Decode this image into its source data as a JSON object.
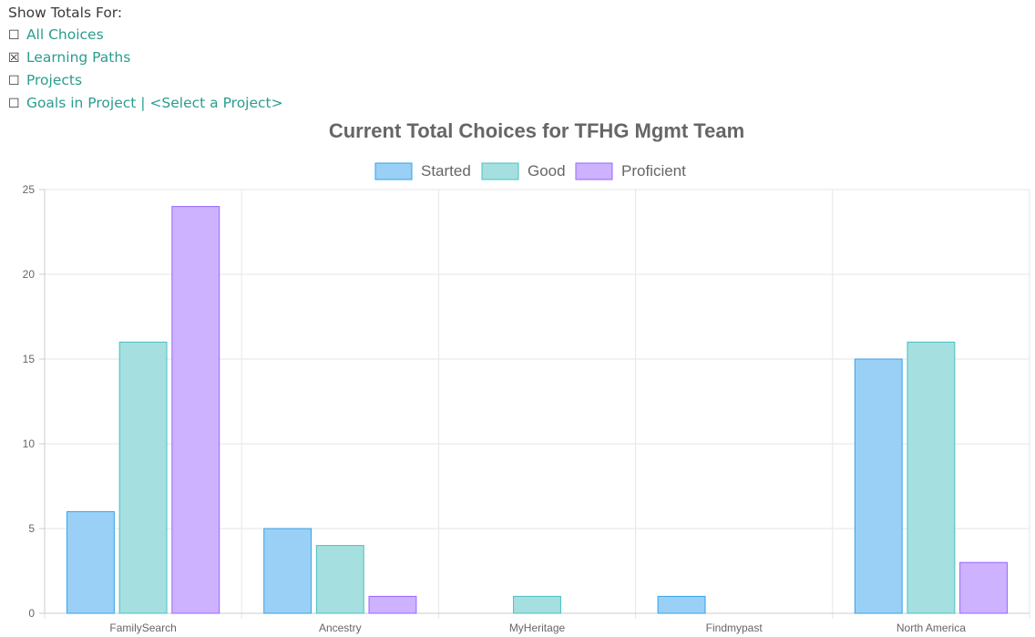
{
  "controls": {
    "heading": "Show Totals For:",
    "options": [
      {
        "label": "All Choices",
        "checked": false
      },
      {
        "label": "Learning Paths",
        "checked": true
      },
      {
        "label": "Projects",
        "checked": false
      },
      {
        "label": "Goals in Project",
        "checked": false,
        "separator": "|",
        "project_select": "<Select a Project>"
      }
    ],
    "checkbox_glyphs": {
      "checked": "☒",
      "unchecked": "☐"
    },
    "link_color": "#2a9d8f"
  },
  "chart_data": {
    "type": "bar",
    "title": "Current Total Choices for TFHG Mgmt Team",
    "categories": [
      "FamilySearch",
      "Ancestry",
      "MyHeritage",
      "Findmypast",
      "North America"
    ],
    "series": [
      {
        "name": "Started",
        "values": [
          6,
          5,
          0,
          1,
          15
        ],
        "fill": "#9ad0f5",
        "stroke": "#36a2eb"
      },
      {
        "name": "Good",
        "values": [
          16,
          4,
          1,
          0,
          16
        ],
        "fill": "#a5dfdf",
        "stroke": "#4bc0c0"
      },
      {
        "name": "Proficient",
        "values": [
          24,
          1,
          0,
          0,
          3
        ],
        "fill": "#ccb2ff",
        "stroke": "#9966ff"
      }
    ],
    "ylim": [
      0,
      25
    ],
    "yticks": [
      0,
      5,
      10,
      15,
      20,
      25
    ],
    "grid": true,
    "legend": "top"
  }
}
